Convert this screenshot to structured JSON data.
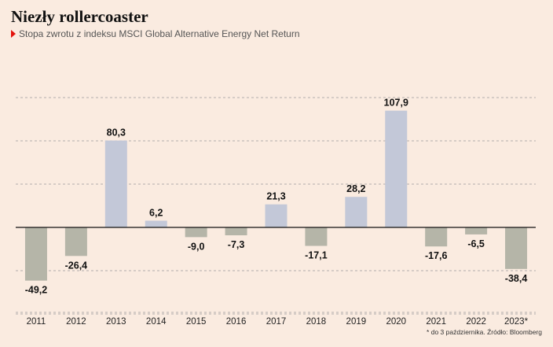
{
  "header": {
    "title": "Niezły rollercoaster",
    "subtitle": "Stopa zwrotu z indeksu MSCI Global Alternative Energy Net Return"
  },
  "footnote": "* do 3 października. Źródło: Bloomberg",
  "colors": {
    "positive": "#c3c8d8",
    "negative": "#b5b5a8",
    "marker": "#e3120b",
    "background": "#faebe0"
  },
  "chart_data": {
    "type": "bar",
    "categories": [
      "2011",
      "2012",
      "2013",
      "2014",
      "2015",
      "2016",
      "2017",
      "2018",
      "2019",
      "2020",
      "2021",
      "2022",
      "2023*"
    ],
    "values": [
      -49.2,
      -26.4,
      80.3,
      6.2,
      -9.0,
      -7.3,
      21.3,
      -17.1,
      28.2,
      107.9,
      -17.6,
      -6.5,
      -38.4
    ],
    "value_labels": [
      "-49,2",
      "-26,4",
      "80,3",
      "6,2",
      "-9,0",
      "-7,3",
      "21,3",
      "-17,1",
      "28,2",
      "107,9",
      "-17,6",
      "-6,5",
      "-38,4"
    ],
    "ylim": [
      -80,
      120
    ],
    "gridlines": [
      -80,
      -40,
      0,
      40,
      80,
      120
    ],
    "grid": true,
    "grid_style": "dashed horizontal",
    "title": "Niezły rollercoaster",
    "subtitle": "Stopa zwrotu z indeksu MSCI Global Alternative Energy Net Return"
  }
}
